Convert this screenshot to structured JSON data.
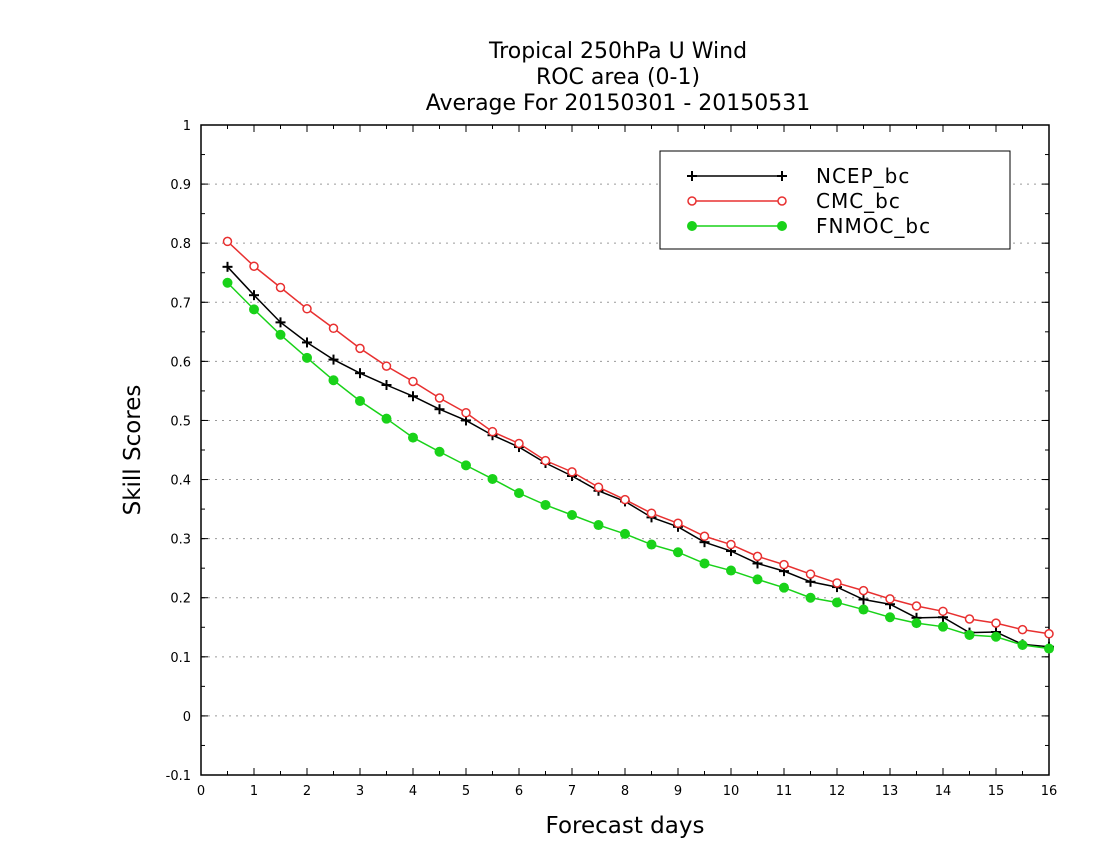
{
  "chart_data": {
    "type": "line",
    "title": [
      "Tropical 250hPa U Wind",
      "ROC area (0-1)",
      "Average For 20150301 - 20150531"
    ],
    "xlabel": "Forecast days",
    "ylabel": "Skill Scores",
    "xlim": [
      0,
      16
    ],
    "ylim": [
      -0.1,
      1
    ],
    "xticks": [
      0,
      1,
      2,
      3,
      4,
      5,
      6,
      7,
      8,
      9,
      10,
      11,
      12,
      13,
      14,
      15,
      16
    ],
    "yticks": [
      -0.1,
      0,
      0.1,
      0.2,
      0.3,
      0.4,
      0.5,
      0.6,
      0.7,
      0.8,
      0.9,
      1
    ],
    "ytick_labels": [
      "-0.1",
      "0",
      "0.1",
      "0.2",
      "0.3",
      "0.4",
      "0.5",
      "0.6",
      "0.7",
      "0.8",
      "0.9",
      "1"
    ],
    "grid": "horizontal-dotted",
    "legend_position": "top-right",
    "x": [
      0.5,
      1,
      1.5,
      2,
      2.5,
      3,
      3.5,
      4,
      4.5,
      5,
      5.5,
      6,
      6.5,
      7,
      7.5,
      8,
      8.5,
      9,
      9.5,
      10,
      10.5,
      11,
      11.5,
      12,
      12.5,
      13,
      13.5,
      14,
      14.5,
      15,
      15.5,
      16
    ],
    "series": [
      {
        "name": "NCEP_bc",
        "color": "#000000",
        "marker": "plus",
        "values": [
          0.76,
          0.712,
          0.666,
          0.632,
          0.603,
          0.58,
          0.56,
          0.541,
          0.519,
          0.5,
          0.475,
          0.455,
          0.428,
          0.406,
          0.381,
          0.363,
          0.336,
          0.32,
          0.294,
          0.279,
          0.258,
          0.245,
          0.227,
          0.218,
          0.197,
          0.189,
          0.166,
          0.167,
          0.141,
          0.142,
          0.121,
          0.117
        ]
      },
      {
        "name": "CMC_bc",
        "color": "#e83030",
        "marker": "open-circle",
        "values": [
          0.803,
          0.761,
          0.725,
          0.689,
          0.656,
          0.622,
          0.592,
          0.566,
          0.538,
          0.513,
          0.481,
          0.461,
          0.432,
          0.413,
          0.387,
          0.366,
          0.343,
          0.326,
          0.304,
          0.29,
          0.27,
          0.256,
          0.24,
          0.225,
          0.212,
          0.198,
          0.186,
          0.177,
          0.164,
          0.157,
          0.146,
          0.139
        ]
      },
      {
        "name": "FNMOC_bc",
        "color": "#19d219",
        "marker": "filled-circle",
        "values": [
          0.733,
          0.688,
          0.645,
          0.606,
          0.568,
          0.533,
          0.503,
          0.471,
          0.447,
          0.424,
          0.401,
          0.377,
          0.357,
          0.34,
          0.323,
          0.308,
          0.29,
          0.277,
          0.258,
          0.246,
          0.231,
          0.217,
          0.2,
          0.192,
          0.18,
          0.167,
          0.157,
          0.151,
          0.137,
          0.134,
          0.12,
          0.114
        ]
      }
    ]
  }
}
